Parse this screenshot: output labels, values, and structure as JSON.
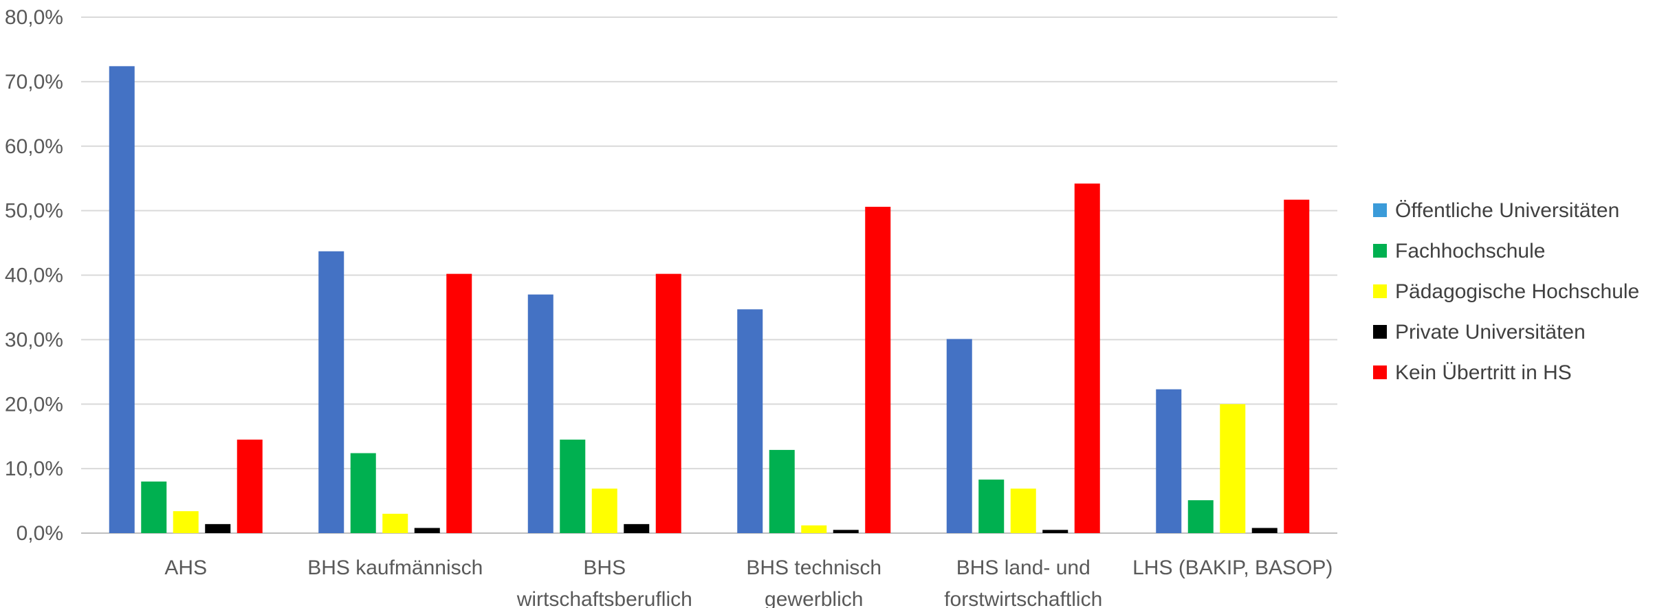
{
  "chart_data": {
    "type": "bar",
    "title": "",
    "xlabel": "",
    "ylabel": "",
    "ylim": [
      0,
      80
    ],
    "y_ticks": [
      "0,0%",
      "10,0%",
      "20,0%",
      "30,0%",
      "40,0%",
      "50,0%",
      "60,0%",
      "70,0%",
      "80,0%"
    ],
    "y_tick_values": [
      0,
      10,
      20,
      30,
      40,
      50,
      60,
      70,
      80
    ],
    "grid": true,
    "legend_position": "right",
    "categories": [
      [
        "AHS"
      ],
      [
        "BHS kaufmännisch"
      ],
      [
        "BHS",
        "wirtschaftsberuflich"
      ],
      [
        "BHS technisch",
        "gewerblich"
      ],
      [
        "BHS land- und",
        "forstwirtschaftlich"
      ],
      [
        "LHS (BAKIP, BASOP)"
      ]
    ],
    "series": [
      {
        "name": "Öffentliche Universitäten",
        "color": "#4472C4",
        "legend_color": "#3B9BD9",
        "values": [
          72.4,
          43.7,
          37.0,
          34.7,
          30.1,
          22.3
        ]
      },
      {
        "name": "Fachhochschule",
        "color": "#00B050",
        "values": [
          8.0,
          12.4,
          14.5,
          12.9,
          8.3,
          5.1
        ]
      },
      {
        "name": "Pädagogische Hochschule",
        "color": "#FFFF00",
        "values": [
          3.4,
          3.0,
          6.9,
          1.2,
          6.9,
          20.0
        ]
      },
      {
        "name": "Private Universitäten",
        "color": "#000000",
        "values": [
          1.4,
          0.8,
          1.4,
          0.5,
          0.5,
          0.8
        ]
      },
      {
        "name": "Kein Übertritt in HS",
        "color": "#FF0000",
        "values": [
          14.5,
          40.2,
          40.2,
          50.6,
          54.2,
          51.7
        ]
      }
    ]
  }
}
